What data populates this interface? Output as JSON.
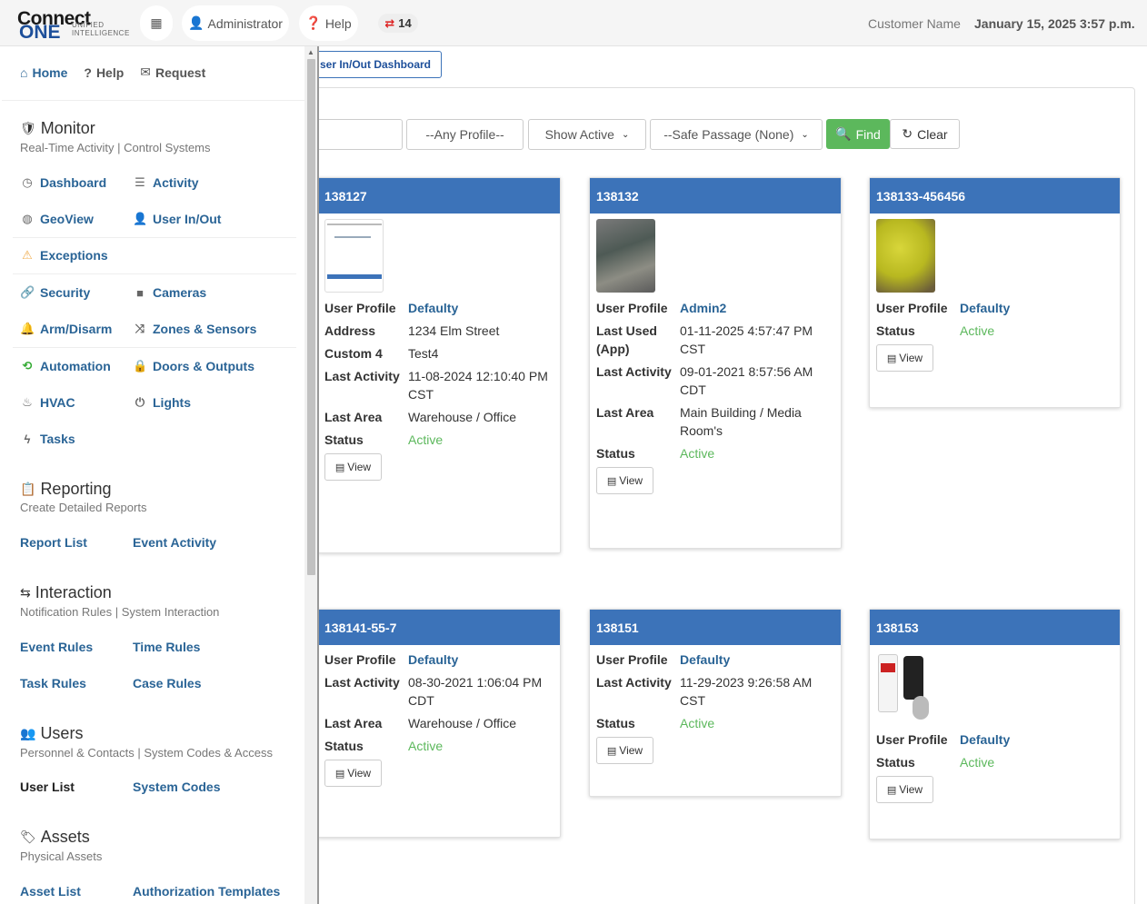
{
  "header": {
    "logo_top": "Connect",
    "logo_bottom": "ONE",
    "logo_tag": "UNIFIED INTELLIGENCE",
    "admin_label": "Administrator",
    "help_label": "Help",
    "badge_count": "14",
    "customer_name": "Customer Name",
    "datetime": "January 15, 2025 3:57 p.m."
  },
  "sidebar": {
    "top": {
      "home": "Home",
      "help": "Help",
      "request": "Request"
    },
    "monitor": {
      "title": "Monitor",
      "subtitle": "Real-Time Activity | Control Systems",
      "items": [
        "Dashboard",
        "Activity",
        "GeoView",
        "User In/Out",
        "Exceptions",
        "Security",
        "Cameras",
        "Arm/Disarm",
        "Zones & Sensors",
        "Automation",
        "Doors & Outputs",
        "HVAC",
        "Lights",
        "Tasks"
      ]
    },
    "reporting": {
      "title": "Reporting",
      "subtitle": "Create Detailed Reports",
      "items": [
        "Report List",
        "Event Activity"
      ]
    },
    "interaction": {
      "title": "Interaction",
      "subtitle": "Notification Rules | System Interaction",
      "items": [
        "Event Rules",
        "Time Rules",
        "Task Rules",
        "Case Rules"
      ]
    },
    "users": {
      "title": "Users",
      "subtitle": "Personnel & Contacts | System Codes & Access",
      "items": [
        "User List",
        "System Codes"
      ]
    },
    "assets": {
      "title": "Assets",
      "subtitle": "Physical Assets",
      "items": [
        "Asset List",
        "Authorization Templates"
      ]
    }
  },
  "main": {
    "tab_label": "ser In/Out Dashboard",
    "filters": {
      "profile": "--Any Profile--",
      "active": "Show Active",
      "safe": "--Safe Passage (None)",
      "find": "Find",
      "clear": "Clear"
    },
    "view_label": "View",
    "cards": [
      {
        "id": "138127",
        "rows": [
          [
            "User Profile",
            "Defaulty"
          ],
          [
            "Address",
            "1234 Elm Street"
          ],
          [
            "Custom 4",
            "Test4"
          ],
          [
            "Last Activity",
            "11-08-2024 12:10:40 PM CST"
          ],
          [
            "Last Area",
            "Warehouse / Office"
          ],
          [
            "Status",
            "Active"
          ]
        ]
      },
      {
        "id": "138132",
        "rows": [
          [
            "User Profile",
            "Admin2"
          ],
          [
            "Last Used (App)",
            "01-11-2025 4:57:47 PM CST"
          ],
          [
            "Last Activity",
            "09-01-2021 8:57:56 AM CDT"
          ],
          [
            "Last Area",
            "Main Building / Media Room's"
          ],
          [
            "Status",
            "Active"
          ]
        ]
      },
      {
        "id": "138133-456456",
        "rows": [
          [
            "User Profile",
            "Defaulty"
          ],
          [
            "Status",
            "Active"
          ]
        ]
      },
      {
        "id": "138141-55-7",
        "rows": [
          [
            "User Profile",
            "Defaulty"
          ],
          [
            "Last Activity",
            "08-30-2021 1:06:04 PM CDT"
          ],
          [
            "Last Area",
            "Warehouse / Office"
          ],
          [
            "Status",
            "Active"
          ]
        ]
      },
      {
        "id": "138151",
        "rows": [
          [
            "User Profile",
            "Defaulty"
          ],
          [
            "Last Activity",
            "11-29-2023 9:26:58 AM CST"
          ],
          [
            "Status",
            "Active"
          ]
        ]
      },
      {
        "id": "138153",
        "rows": [
          [
            "User Profile",
            "Defaulty"
          ],
          [
            "Status",
            "Active"
          ]
        ]
      }
    ]
  }
}
